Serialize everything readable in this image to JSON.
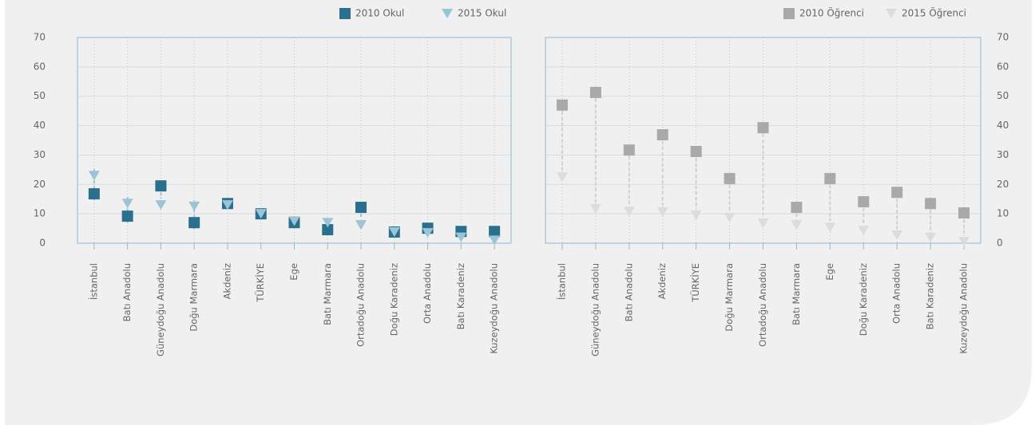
{
  "chart_data": [
    {
      "type": "scatter",
      "axis_side": "left",
      "categories": [
        "İstanbul",
        "Batı Anadolu",
        "Güneydoğu Anadolu",
        "Doğu Marmara",
        "Akdeniz",
        "TÜRKİYE",
        "Ege",
        "Batı Marmara",
        "Ortadoğu Anadolu",
        "Doğu Karadeniz",
        "Orta Anadolu",
        "Batı Karadeniz",
        "Kuzeydoğu Anadolu"
      ],
      "series": [
        {
          "name": "2010 Okul",
          "color": "#2a6f8e",
          "marker": "square",
          "values": [
            16.8,
            9.2,
            19.5,
            7,
            13.5,
            10,
            7,
            4.6,
            12.2,
            3.8,
            5.1,
            4,
            4
          ]
        },
        {
          "name": "2015 Okul",
          "color": "#9cc3d6",
          "marker": "triangle",
          "values": [
            23,
            13.5,
            13,
            12.5,
            13,
            10,
            7.5,
            7,
            6.2,
            3.8,
            3.5,
            2,
            1
          ]
        }
      ],
      "ylim": [
        0,
        70
      ],
      "yticks": [
        0,
        10,
        20,
        30,
        40,
        50,
        60,
        70
      ],
      "grid": true
    },
    {
      "type": "scatter",
      "axis_side": "right",
      "categories": [
        "İstanbul",
        "Güneydoğu Anadolu",
        "Batı Anadolu",
        "Akdeniz",
        "TÜRKİYE",
        "Doğu Marmara",
        "Ortadoğu Anadolu",
        "Batı Marmara",
        "Ege",
        "Doğu Karadeniz",
        "Orta Anadolu",
        "Batı Karadeniz",
        "Kuzeydoğu Anadolu"
      ],
      "series": [
        {
          "name": "2010 Öğrenci",
          "color": "#a9a9a9",
          "marker": "square",
          "values": [
            47,
            51.3,
            31.7,
            36.9,
            31.2,
            22,
            39.3,
            12.2,
            22,
            14.1,
            17.3,
            13.5,
            10.3
          ]
        },
        {
          "name": "2015 Öğrenci",
          "color": "#dcdcdc",
          "marker": "triangle",
          "values": [
            22.5,
            11.7,
            10.8,
            10.6,
            9.5,
            8.7,
            6.8,
            6.2,
            5.4,
            4.3,
            2.7,
            1.9,
            0.5
          ]
        }
      ],
      "ylim": [
        0,
        70
      ],
      "yticks": [
        0,
        10,
        20,
        30,
        40,
        50,
        60,
        70
      ],
      "grid": true
    }
  ]
}
